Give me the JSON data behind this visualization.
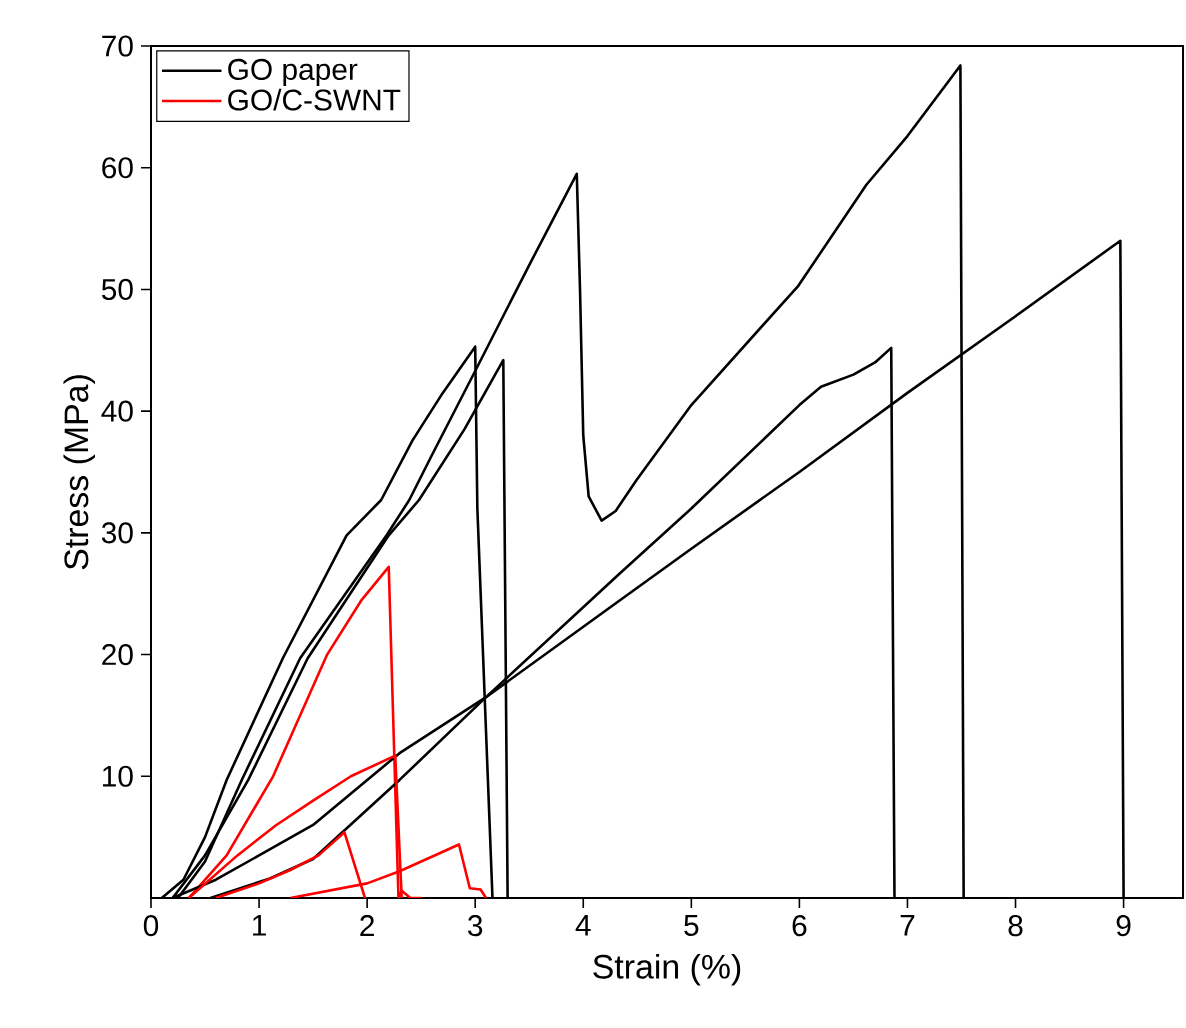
{
  "chart_data": {
    "type": "line",
    "xlabel": "Strain (%)",
    "ylabel": "Stress (MPa)",
    "xlim": [
      0,
      9.55
    ],
    "ylim": [
      0,
      70
    ],
    "xticks": [
      0,
      1,
      2,
      3,
      4,
      5,
      6,
      7,
      8,
      9
    ],
    "yticks": [
      10,
      20,
      30,
      40,
      50,
      60,
      70
    ],
    "grid": false,
    "legend": "top left",
    "marker": "none",
    "line_style": "solid",
    "series": [
      {
        "name": "GO paper",
        "color": "#000000",
        "x": [
          0.1,
          0.3,
          0.5,
          0.7,
          1.22,
          1.81,
          2.13,
          2.42,
          2.7,
          3.0,
          3.02,
          3.16
        ],
        "values": [
          0,
          1.5,
          5,
          9.7,
          19.7,
          29.8,
          32.7,
          37.6,
          41.5,
          45.3,
          32,
          0
        ]
      },
      {
        "name": "GO/C-SWNT",
        "color": "#ff0000",
        "x": [
          0.35,
          0.7,
          1.13,
          1.63,
          1.95,
          2.2,
          2.29,
          2.32,
          2.4,
          2.5
        ],
        "values": [
          0,
          3.5,
          10,
          20,
          24.5,
          27.2,
          0,
          0.6,
          0,
          0
        ]
      },
      {
        "color": "#000000",
        "x": [
          0.2,
          0.5,
          0.9,
          1.45,
          2.2,
          2.48,
          2.9,
          3.26,
          3.3
        ],
        "values": [
          0,
          3.5,
          9.7,
          19.7,
          29.8,
          32.7,
          38.5,
          44.2,
          0
        ]
      },
      {
        "color": "#000000",
        "x": [
          0.25,
          0.5,
          0.84,
          1.38,
          2.18,
          2.39,
          2.6,
          3.0,
          3.5,
          3.94,
          3.97,
          4.0,
          4.05,
          4.17,
          4.3,
          4.49,
          5.0,
          5.99,
          6.62,
          7.0,
          7.49,
          7.52
        ],
        "values": [
          0,
          3,
          9.7,
          19.7,
          29.8,
          32.7,
          36.4,
          43.3,
          52.0,
          59.5,
          50,
          38,
          33,
          31,
          31.8,
          34.3,
          40.5,
          50.3,
          58.6,
          62.6,
          68.4,
          0
        ]
      },
      {
        "color": "#000000",
        "x": [
          0.55,
          1.1,
          1.5,
          2.3,
          3.1,
          4.33,
          5.0,
          6.0,
          6.2,
          6.5,
          6.7,
          6.85,
          6.88
        ],
        "values": [
          0,
          1.6,
          3.2,
          9.7,
          16.5,
          26.6,
          32,
          40.5,
          42,
          43,
          44,
          45.2,
          0
        ]
      },
      {
        "color": "#000000",
        "x": [
          0.2,
          0.6,
          1.0,
          1.5,
          2.3,
          3.1,
          4.33,
          5.0,
          6.0,
          7.0,
          8.0,
          8.97,
          9.0
        ],
        "values": [
          0,
          1.5,
          3.5,
          6,
          11.9,
          16.5,
          24.4,
          28.7,
          35,
          41.5,
          47.8,
          54.0,
          0
        ]
      },
      {
        "color": "#ff0000",
        "x": [
          0.35,
          0.8,
          1.16,
          1.5,
          1.85,
          2.26,
          2.32
        ],
        "values": [
          0,
          3.5,
          6.0,
          8.0,
          10.0,
          11.7,
          0
        ]
      },
      {
        "color": "#ff0000",
        "x": [
          0.6,
          1.0,
          1.29,
          1.55,
          1.79,
          1.98
        ],
        "values": [
          0,
          1.2,
          2.3,
          3.5,
          5.4,
          0
        ]
      },
      {
        "color": "#ff0000",
        "x": [
          1.29,
          2.0,
          2.3,
          2.85,
          2.95,
          3.05,
          3.1
        ],
        "values": [
          0,
          1.2,
          2.2,
          4.4,
          0.8,
          0.7,
          0
        ]
      }
    ]
  }
}
